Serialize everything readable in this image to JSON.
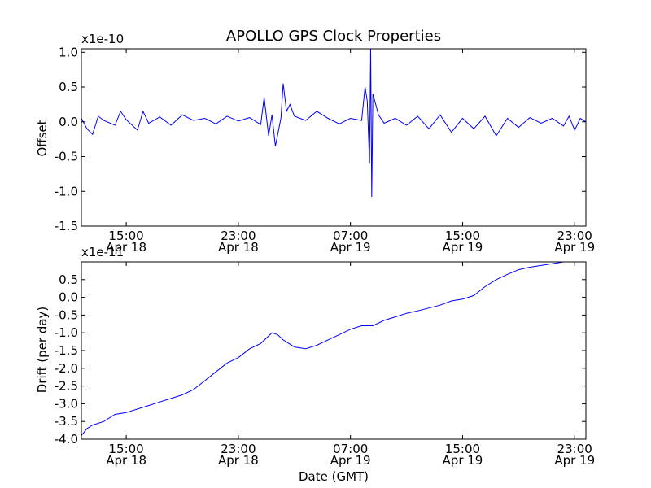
{
  "title": "APOLLO GPS Clock Properties",
  "xlabel": "Date (GMT)",
  "colors": {
    "series": "#0000ff",
    "axes": "#000000",
    "background": "#ffffff"
  },
  "chart_data": [
    {
      "type": "line",
      "name": "offset",
      "ylabel": "Offset",
      "scale_label": "x1e-10",
      "xlim": [
        0,
        45
      ],
      "ylim": [
        -1.5,
        1.05
      ],
      "yticks": [
        {
          "v": 1.0,
          "label": "1.0"
        },
        {
          "v": 0.5,
          "label": "0.5"
        },
        {
          "v": 0.0,
          "label": "0.0"
        },
        {
          "v": -0.5,
          "label": "-0.5"
        },
        {
          "v": -1.0,
          "label": "-1.0"
        },
        {
          "v": -1.5,
          "label": "-1.5"
        }
      ],
      "xticks": [
        {
          "v": 4,
          "time": "15:00",
          "date": "Apr 18"
        },
        {
          "v": 14,
          "time": "23:00",
          "date": "Apr 18"
        },
        {
          "v": 24,
          "time": "07:00",
          "date": "Apr 19"
        },
        {
          "v": 34,
          "time": "15:00",
          "date": "Apr 19"
        },
        {
          "v": 44,
          "time": "23:00",
          "date": "Apr 19"
        }
      ],
      "x": [
        0,
        0.5,
        1,
        1.5,
        2,
        3,
        3.5,
        4,
        5,
        5.5,
        6,
        7,
        8,
        9,
        10,
        11,
        12,
        13,
        14,
        15,
        16,
        16.3,
        16.7,
        17,
        17.3,
        17.8,
        18,
        18.3,
        18.6,
        19,
        20,
        21,
        22,
        23,
        24,
        25,
        25.3,
        25.5,
        25.7,
        25.8,
        25.9,
        26,
        26.2,
        26.5,
        27,
        28,
        29,
        30,
        31,
        32,
        33,
        34,
        35,
        36,
        37,
        38,
        39,
        40,
        41,
        42,
        43,
        43.5,
        44,
        44.5,
        45
      ],
      "values": [
        0.05,
        -0.1,
        -0.18,
        0.08,
        0.02,
        -0.05,
        0.15,
        0.03,
        -0.12,
        0.15,
        -0.02,
        0.07,
        -0.05,
        0.1,
        0.02,
        0.05,
        -0.03,
        0.08,
        0.01,
        0.06,
        -0.04,
        0.35,
        -0.2,
        0.1,
        -0.35,
        0.05,
        0.55,
        0.15,
        0.25,
        0.08,
        0.02,
        0.15,
        0.05,
        -0.03,
        0.05,
        0.02,
        0.5,
        0.3,
        -0.6,
        1.05,
        -1.08,
        0.4,
        0.28,
        0.1,
        -0.02,
        0.05,
        -0.05,
        0.08,
        -0.1,
        0.1,
        -0.15,
        0.05,
        -0.1,
        0.08,
        -0.2,
        0.05,
        -0.08,
        0.06,
        -0.02,
        0.05,
        -0.06,
        0.08,
        -0.12,
        0.05,
        0.0
      ]
    },
    {
      "type": "line",
      "name": "drift",
      "ylabel": "Drift (per day)",
      "scale_label": "x1e-11",
      "xlim": [
        0,
        45
      ],
      "ylim": [
        -4.0,
        1.0
      ],
      "yticks": [
        {
          "v": 0.5,
          "label": "0.5"
        },
        {
          "v": 0.0,
          "label": "0.0"
        },
        {
          "v": -0.5,
          "label": "-0.5"
        },
        {
          "v": -1.0,
          "label": "-1.0"
        },
        {
          "v": -1.5,
          "label": "-1.5"
        },
        {
          "v": -2.0,
          "label": "-2.0"
        },
        {
          "v": -2.5,
          "label": "-2.5"
        },
        {
          "v": -3.0,
          "label": "-3.0"
        },
        {
          "v": -3.5,
          "label": "-3.5"
        },
        {
          "v": -4.0,
          "label": "-4.0"
        }
      ],
      "xticks": [
        {
          "v": 4,
          "time": "15:00",
          "date": "Apr 18"
        },
        {
          "v": 14,
          "time": "23:00",
          "date": "Apr 18"
        },
        {
          "v": 24,
          "time": "07:00",
          "date": "Apr 19"
        },
        {
          "v": 34,
          "time": "15:00",
          "date": "Apr 19"
        },
        {
          "v": 44,
          "time": "23:00",
          "date": "Apr 19"
        }
      ],
      "x": [
        0,
        0.5,
        1,
        2,
        3,
        4,
        5,
        6,
        7,
        8,
        9,
        10,
        11,
        12,
        13,
        14,
        15,
        16,
        17,
        17.5,
        18,
        19,
        20,
        21,
        22,
        23,
        24,
        25,
        26,
        27,
        28,
        29,
        30,
        31,
        32,
        33,
        34,
        35,
        36,
        37,
        38,
        39,
        40,
        41,
        42,
        43,
        44,
        45
      ],
      "values": [
        -3.9,
        -3.7,
        -3.6,
        -3.5,
        -3.3,
        -3.25,
        -3.15,
        -3.05,
        -2.95,
        -2.85,
        -2.75,
        -2.6,
        -2.35,
        -2.1,
        -1.85,
        -1.7,
        -1.45,
        -1.3,
        -1.0,
        -1.05,
        -1.2,
        -1.4,
        -1.45,
        -1.35,
        -1.2,
        -1.05,
        -0.9,
        -0.8,
        -0.8,
        -0.65,
        -0.55,
        -0.45,
        -0.38,
        -0.3,
        -0.22,
        -0.1,
        -0.05,
        0.05,
        0.3,
        0.5,
        0.65,
        0.78,
        0.85,
        0.9,
        0.95,
        1.0,
        1.0,
        1.0
      ]
    }
  ]
}
